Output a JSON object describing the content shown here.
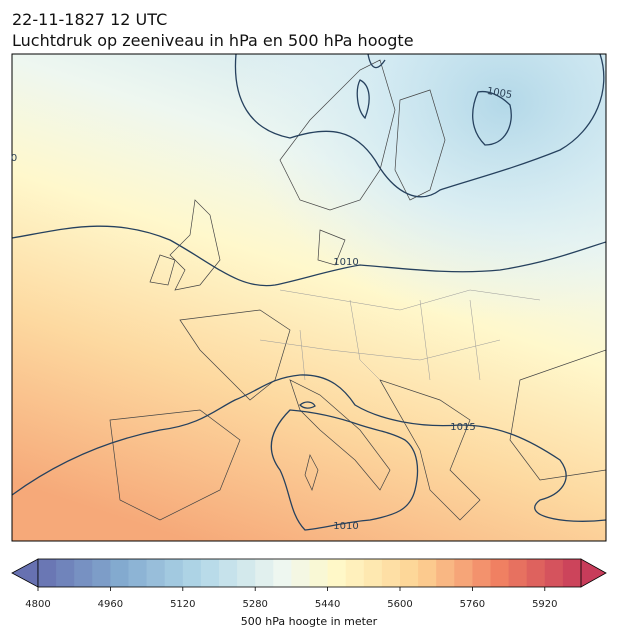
{
  "header": {
    "date": "22-11-1827 12 UTC",
    "title": "Luchtdruk op zeeniveau in hPa en 500 hPa hoogte"
  },
  "map": {
    "contour_labels": [
      "1005",
      "1010",
      "1015",
      "1010",
      "0"
    ]
  },
  "colorbar": {
    "label": "500 hPa hoogte in meter",
    "range": [
      4800,
      6000
    ],
    "ticks": [
      4800,
      4960,
      5120,
      5280,
      5440,
      5600,
      5760,
      5920
    ]
  }
}
